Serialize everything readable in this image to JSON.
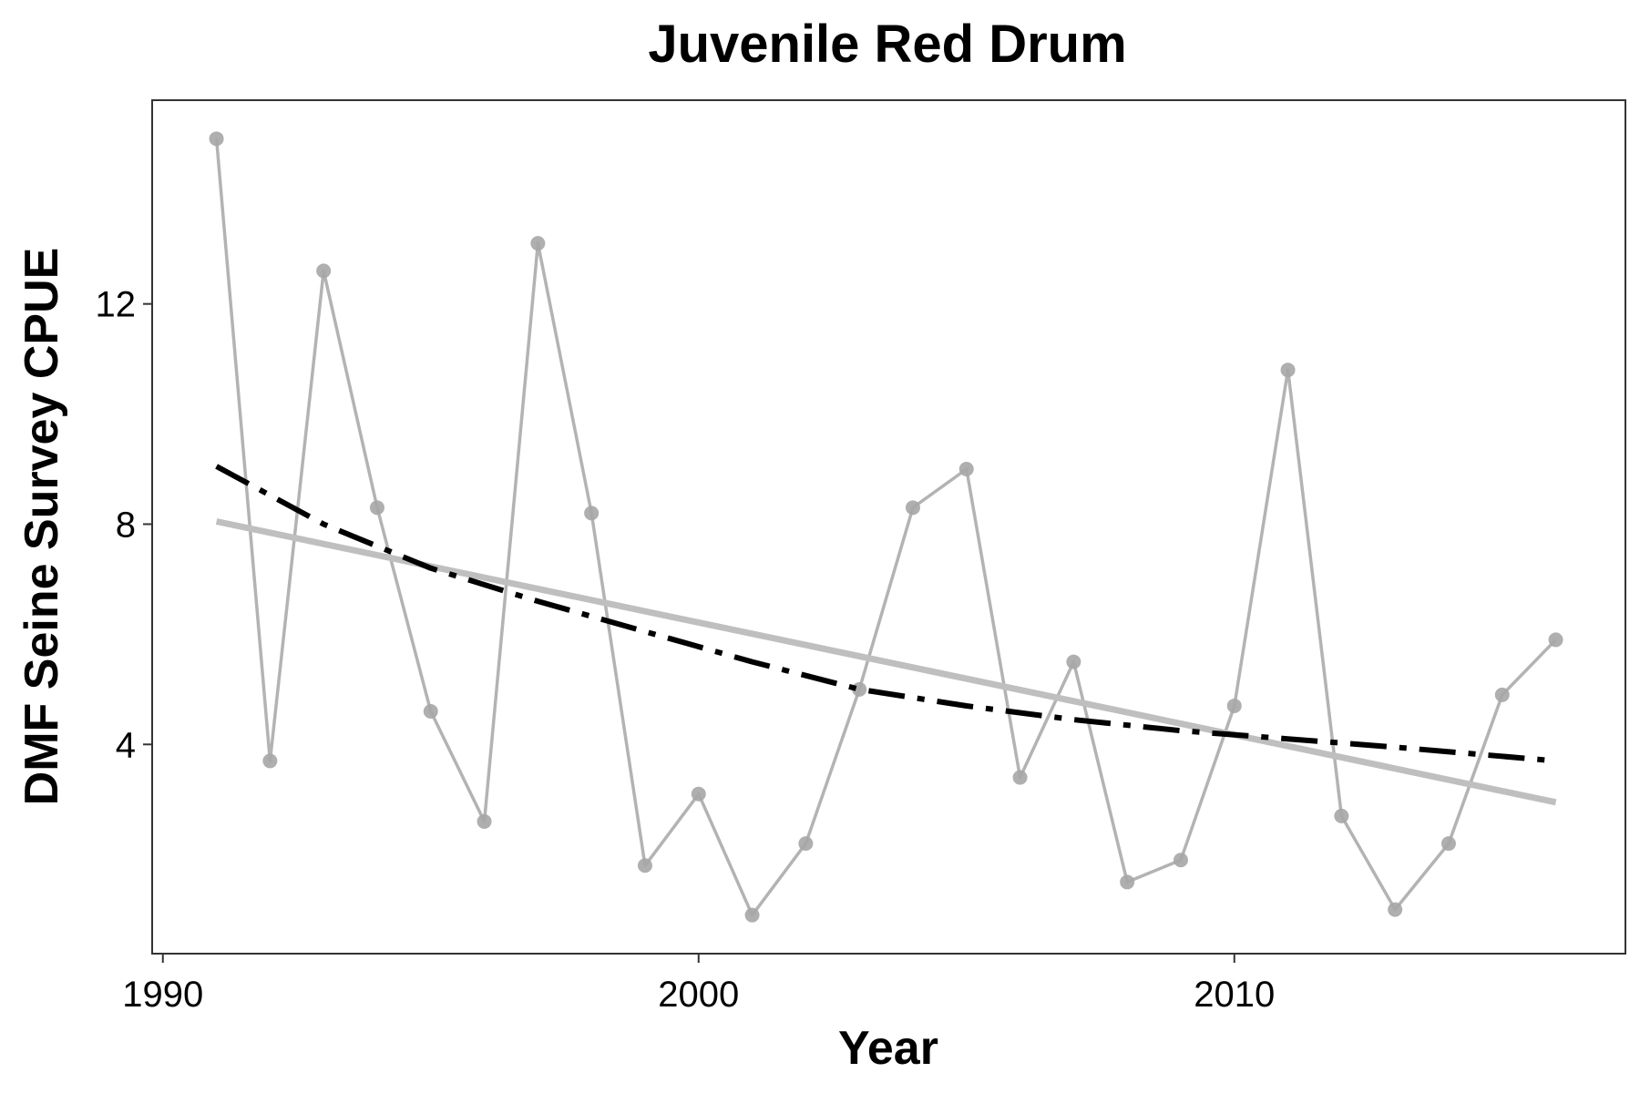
{
  "chart_data": {
    "type": "line",
    "title": "Juvenile Red Drum",
    "xlabel": "Year",
    "ylabel": "DMF Seine Survey CPUE",
    "xlim": [
      1989.8,
      2017.3
    ],
    "ylim": [
      0.2,
      15.7
    ],
    "x_ticks": [
      1990,
      2000,
      2010
    ],
    "y_ticks": [
      4,
      8,
      12
    ],
    "grid": false,
    "legend": "none",
    "colors": {
      "observed": "#b3b3b3",
      "points": "#a6a6a6",
      "linear_trend": "#bfbfbf",
      "curve_trend": "#000000"
    },
    "series": [
      {
        "style": "line+points",
        "x": [
          1991,
          1992,
          1993,
          1994,
          1995,
          1996,
          1997,
          1998,
          1999,
          2000,
          2001,
          2002,
          2003,
          2004,
          2005,
          2006,
          2007,
          2008,
          2009,
          2010,
          2011,
          2012,
          2013,
          2014,
          2015,
          2016
        ],
        "values": [
          15.0,
          3.7,
          12.6,
          8.3,
          4.6,
          2.6,
          13.1,
          8.2,
          1.8,
          3.1,
          0.9,
          2.2,
          5.0,
          8.3,
          9.0,
          3.4,
          5.5,
          1.5,
          1.9,
          4.7,
          10.8,
          2.7,
          1.0,
          2.2,
          4.9,
          5.9
        ]
      },
      {
        "style": "solid",
        "x": [
          1991,
          2016
        ],
        "values": [
          8.05,
          2.95
        ]
      },
      {
        "style": "dashdot",
        "x": [
          1991,
          1993,
          1995,
          1997,
          1999,
          2001,
          2003,
          2005,
          2007,
          2009,
          2011,
          2013,
          2016
        ],
        "values": [
          9.05,
          8.0,
          7.2,
          6.6,
          6.05,
          5.5,
          5.0,
          4.7,
          4.45,
          4.25,
          4.1,
          3.95,
          3.7
        ]
      }
    ]
  }
}
